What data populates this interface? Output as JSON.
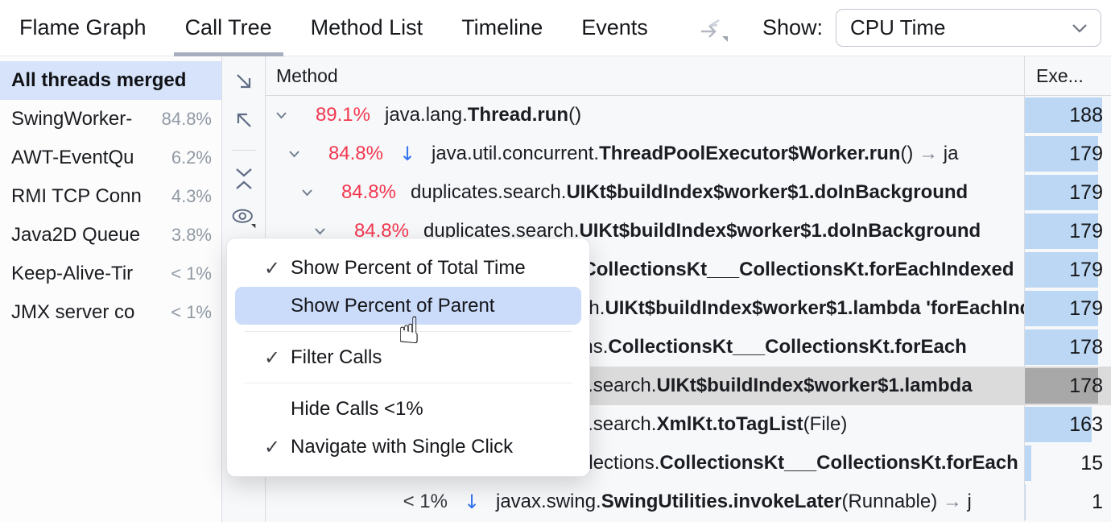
{
  "tabs": {
    "items": [
      {
        "label": "Flame Graph",
        "selected": false
      },
      {
        "label": "Call Tree",
        "selected": true
      },
      {
        "label": "Method List",
        "selected": false
      },
      {
        "label": "Timeline",
        "selected": false
      },
      {
        "label": "Events",
        "selected": false
      }
    ],
    "show_label": "Show:",
    "show_value": "CPU Time"
  },
  "threads": {
    "items": [
      {
        "name": "All threads merged",
        "pct": "",
        "selected": true
      },
      {
        "name": "SwingWorker-",
        "pct": "84.8%",
        "selected": false
      },
      {
        "name": "AWT-EventQu",
        "pct": "6.2%",
        "selected": false
      },
      {
        "name": "RMI TCP Conn",
        "pct": "4.3%",
        "selected": false
      },
      {
        "name": "Java2D Queue",
        "pct": "3.8%",
        "selected": false
      },
      {
        "name": "Keep-Alive-Tir",
        "pct": "< 1%",
        "selected": false
      },
      {
        "name": "JMX server co",
        "pct": "< 1%",
        "selected": false
      }
    ]
  },
  "toolbar_icons": [
    "descendants-icon",
    "ancestors-icon",
    "collapse-all-icon",
    "view-options-eye-icon"
  ],
  "tree": {
    "method_column": "Method",
    "value_column": "Exe...",
    "max_value": 188,
    "rows": [
      {
        "depth": 0,
        "chevron": true,
        "pct": "89.1%",
        "pct_style": "red",
        "thread_arrow": false,
        "selected": false,
        "value": 188,
        "segments": [
          {
            "t": "java.lang."
          },
          {
            "t": "Thread.run",
            "b": true
          },
          {
            "t": "()"
          }
        ]
      },
      {
        "depth": 1,
        "chevron": true,
        "pct": "84.8%",
        "pct_style": "red",
        "thread_arrow": true,
        "selected": false,
        "value": 179,
        "segments": [
          {
            "t": "java.util.concurrent."
          },
          {
            "t": "ThreadPoolExecutor$Worker.run",
            "b": true
          },
          {
            "t": "()"
          },
          {
            "t": " → ",
            "c": "gray"
          },
          {
            "t": "ja"
          }
        ]
      },
      {
        "depth": 2,
        "chevron": true,
        "pct": "84.8%",
        "pct_style": "red",
        "thread_arrow": false,
        "selected": false,
        "value": 179,
        "segments": [
          {
            "t": "duplicates.search."
          },
          {
            "t": "UIKt$buildIndex$worker$1.doInBackground",
            "b": true
          }
        ]
      },
      {
        "depth": 3,
        "chevron": true,
        "pct": "84.8%",
        "pct_style": "red",
        "thread_arrow": false,
        "selected": false,
        "value": 179,
        "segments": [
          {
            "t": "duplicates.search."
          },
          {
            "t": "UIKt$buildIndex$worker$1.doInBackground",
            "b": true
          }
        ]
      },
      {
        "depth": 4,
        "chevron": true,
        "pct": "",
        "pct_style": "red",
        "thread_arrow": false,
        "selected": false,
        "value": 179,
        "segments": [
          {
            "t": "kotlin.collections."
          },
          {
            "t": "CollectionsKt___CollectionsKt.forEachIndexed",
            "b": true
          }
        ]
      },
      {
        "depth": 5,
        "chevron": true,
        "pct": "",
        "pct_style": "red",
        "thread_arrow": false,
        "selected": false,
        "value": 179,
        "segments": [
          {
            "t": "duplicates.search."
          },
          {
            "t": "UIKt$buildIndex$worker$1.lambda 'forEachIndexed'",
            "b": true
          }
        ]
      },
      {
        "depth": 6,
        "chevron": true,
        "pct": "",
        "pct_style": "red",
        "thread_arrow": false,
        "selected": false,
        "value": 178,
        "segments": [
          {
            "t": "kotlin.collections."
          },
          {
            "t": "CollectionsKt___CollectionsKt.forEach",
            "b": true
          }
        ]
      },
      {
        "depth": 9,
        "chevron": true,
        "pct": "",
        "pct_style": "red",
        "thread_arrow": false,
        "selected": true,
        "value": 178,
        "segments": [
          {
            "t": "duplicates.search."
          },
          {
            "t": "UIKt$buildIndex$worker$1.lambda",
            "b": true
          }
        ]
      },
      {
        "depth": 9,
        "chevron": false,
        "pct": "",
        "pct_style": "red",
        "thread_arrow": false,
        "selected": false,
        "value": 163,
        "segments": [
          {
            "t": "duplicates.search."
          },
          {
            "t": "XmlKt.toTagList",
            "b": true
          },
          {
            "t": "(File)"
          }
        ]
      },
      {
        "depth": 10,
        "chevron": false,
        "pct": "",
        "pct_style": "red",
        "thread_arrow": false,
        "selected": false,
        "value": 15,
        "segments": [
          {
            "t": "kotlin.collections."
          },
          {
            "t": "CollectionsKt___CollectionsKt.forEach",
            "b": true
          }
        ]
      },
      {
        "depth": 6,
        "chevron": false,
        "pct": "< 1%",
        "pct_style": "dark",
        "thread_arrow": true,
        "selected": false,
        "value": 1,
        "segments": [
          {
            "t": "javax.swing."
          },
          {
            "t": "SwingUtilities.invokeLater",
            "b": true
          },
          {
            "t": "(Runnable)"
          },
          {
            "t": " → ",
            "c": "gray"
          },
          {
            "t": "j"
          }
        ]
      }
    ]
  },
  "menu": {
    "check_glyph": "✓",
    "items": [
      {
        "label": "Show Percent of Total Time",
        "checked": true,
        "highlighted": false
      },
      {
        "label": "Show Percent of Parent",
        "checked": false,
        "highlighted": true
      },
      {
        "sep": true
      },
      {
        "label": "Filter Calls",
        "checked": true,
        "highlighted": false
      },
      {
        "sep": true
      },
      {
        "label": "Hide Calls <1%",
        "checked": false,
        "highlighted": false
      },
      {
        "label": "Navigate with Single Click",
        "checked": true,
        "highlighted": false
      }
    ]
  },
  "cursor_glyph": "☝",
  "colors": {
    "accent_blue": "#3574f0",
    "percent_red": "#f2374f",
    "bar_blue": "#bcd7f4",
    "bar_selected": "#a8a8a8",
    "row_selected": "#dbdbdb",
    "sidebar_selected": "#d7e3fa",
    "menu_highlight": "#cbdbfa",
    "tab_underline": "#a8aebd"
  },
  "arrows": {
    "down": "↓",
    "right": "→"
  }
}
